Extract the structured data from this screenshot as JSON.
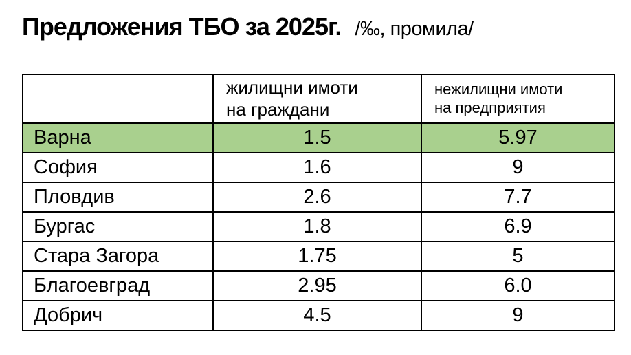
{
  "title": {
    "main": "Предложения ТБО за 2025г.",
    "unit": "/‰, промила/"
  },
  "table": {
    "header_city": "",
    "header_residential": "жилищни имоти\nна граждани",
    "header_nonresidential": "нежилищни имоти\nна предприятия",
    "rows": [
      {
        "city": "Варна",
        "residential": "1.5",
        "nonresidential": "5.97"
      },
      {
        "city": "София",
        "residential": "1.6",
        "nonresidential": "9"
      },
      {
        "city": "Пловдив",
        "residential": "2.6",
        "nonresidential": "7.7"
      },
      {
        "city": "Бургас",
        "residential": "1.8",
        "nonresidential": "6.9"
      },
      {
        "city": "Стара Загора",
        "residential": "1.75",
        "nonresidential": "5"
      },
      {
        "city": "Благоевград",
        "residential": "2.95",
        "nonresidential": "6.0"
      },
      {
        "city": "Добрич",
        "residential": "4.5",
        "nonresidential": "9"
      }
    ],
    "highlighted_row": "Варна"
  },
  "chart_data": {
    "type": "table",
    "title": "Предложения ТБО за 2025г.",
    "unit_note": "/‰, промила/",
    "columns": [
      "",
      "жилищни имоти на граждани",
      "нежилищни имоти на предприятия"
    ],
    "rows": [
      [
        "Варна",
        1.5,
        5.97
      ],
      [
        "София",
        1.6,
        9
      ],
      [
        "Пловдив",
        2.6,
        7.7
      ],
      [
        "Бургас",
        1.8,
        6.9
      ],
      [
        "Стара Загора",
        1.75,
        5
      ],
      [
        "Благоевград",
        2.95,
        6.0
      ],
      [
        "Добрич",
        4.5,
        9
      ]
    ],
    "highlighted_row": "Варна",
    "layout": {
      "grid": true,
      "header_position": "top"
    }
  },
  "colors": {
    "highlight_green": "#a9d08e",
    "border": "#000000",
    "text": "#000000",
    "background": "#ffffff"
  }
}
